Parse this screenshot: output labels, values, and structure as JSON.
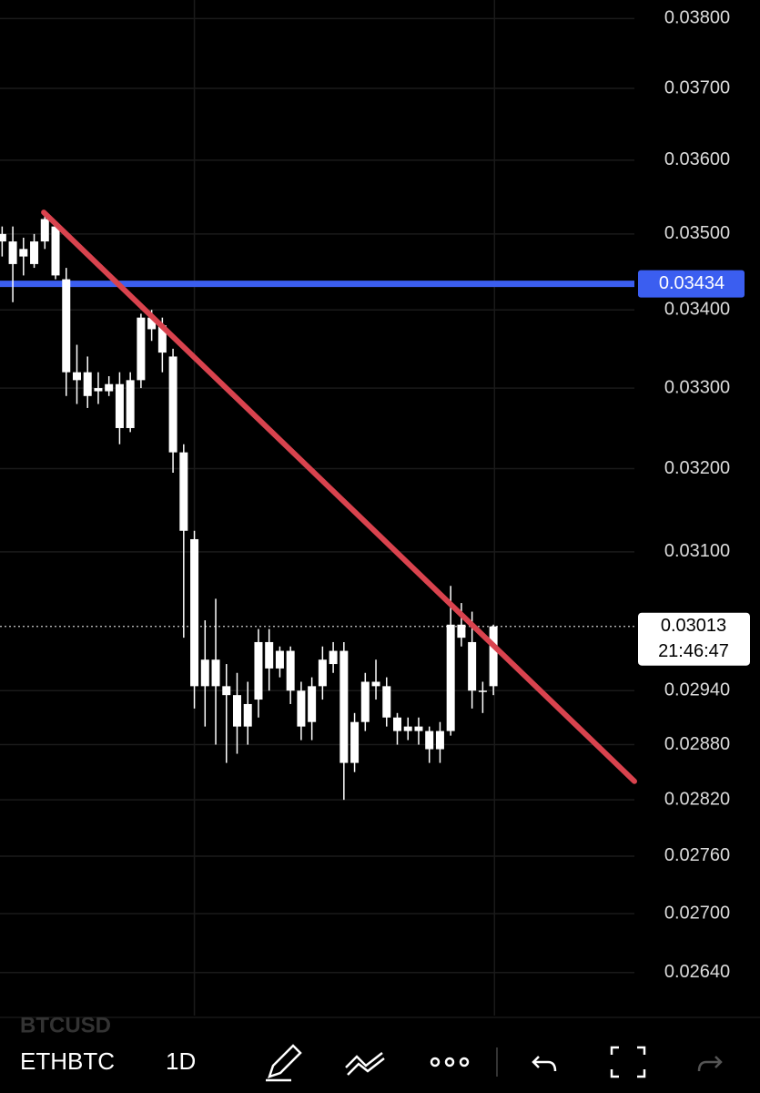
{
  "chart_data": {
    "type": "candlestick",
    "log_scale": true,
    "grid": true,
    "up_color": "#ffffff",
    "trend_color": "#d9434e",
    "hline_color": "#3b5ef0",
    "open": [
      0.0349,
      0.0346,
      0.0347,
      0.0346,
      0.0349,
      0.0351,
      0.0344,
      0.0332,
      0.0332,
      0.033,
      0.03296,
      0.03305,
      0.0325,
      0.0331,
      0.0339,
      0.0338,
      0.0334,
      0.0322,
      0.03115,
      0.02945,
      0.02975,
      0.02945,
      0.02935,
      0.029,
      0.0293,
      0.02995,
      0.02965,
      0.02985,
      0.0294,
      0.02905,
      0.02945,
      0.0297,
      0.02985,
      0.0286,
      0.02905,
      0.0295,
      0.02945,
      0.0291,
      0.02895,
      0.029,
      0.02895,
      0.02875,
      0.02895,
      0.03015,
      0.02995,
      0.0294,
      0.02945
    ],
    "high": [
      0.0351,
      0.0351,
      0.03495,
      0.035,
      0.0353,
      0.03515,
      0.03455,
      0.03355,
      0.0334,
      0.0332,
      0.03315,
      0.0332,
      0.0332,
      0.03395,
      0.034,
      0.0339,
      0.0335,
      0.0323,
      0.03125,
      0.0302,
      0.03045,
      0.0297,
      0.0296,
      0.0295,
      0.0301,
      0.0301,
      0.0299,
      0.0299,
      0.0295,
      0.02955,
      0.0299,
      0.02995,
      0.02995,
      0.02915,
      0.0296,
      0.02975,
      0.02955,
      0.02915,
      0.0291,
      0.0291,
      0.029,
      0.02905,
      0.0306,
      0.0304,
      0.0303,
      0.0295,
      0.03015
    ],
    "low": [
      0.0347,
      0.0341,
      0.03445,
      0.03455,
      0.0348,
      0.0344,
      0.0329,
      0.0328,
      0.03275,
      0.0328,
      0.0329,
      0.0323,
      0.03245,
      0.033,
      0.0336,
      0.0332,
      0.03195,
      0.03,
      0.0292,
      0.029,
      0.0288,
      0.0286,
      0.0287,
      0.0288,
      0.0291,
      0.0294,
      0.02955,
      0.02925,
      0.02885,
      0.02885,
      0.0293,
      0.0296,
      0.0282,
      0.0285,
      0.02895,
      0.0293,
      0.029,
      0.0288,
      0.02885,
      0.0288,
      0.0286,
      0.0286,
      0.0289,
      0.0299,
      0.0292,
      0.02915,
      0.02935
    ],
    "close": [
      0.035,
      0.0349,
      0.0348,
      0.0349,
      0.0352,
      0.03445,
      0.0332,
      0.0331,
      0.0329,
      0.03296,
      0.03305,
      0.0325,
      0.0331,
      0.0339,
      0.03375,
      0.03345,
      0.0322,
      0.03125,
      0.02945,
      0.02975,
      0.02945,
      0.02935,
      0.029,
      0.02925,
      0.02995,
      0.02965,
      0.02985,
      0.0294,
      0.029,
      0.02945,
      0.02975,
      0.02985,
      0.0286,
      0.02905,
      0.0295,
      0.02945,
      0.0291,
      0.02895,
      0.029,
      0.02895,
      0.02875,
      0.02895,
      0.03015,
      0.03,
      0.0294,
      0.0294,
      0.03013
    ],
    "xlim": [
      -0.2,
      59.2
    ],
    "ylim": [
      0.02597,
      0.03827
    ],
    "yticks": [
      {
        "value": 0.038,
        "label": "0.03800"
      },
      {
        "value": 0.037,
        "label": "0.03700"
      },
      {
        "value": 0.036,
        "label": "0.03600"
      },
      {
        "value": 0.035,
        "label": "0.03500"
      },
      {
        "value": 0.034,
        "label": "0.03400"
      },
      {
        "value": 0.033,
        "label": "0.03300"
      },
      {
        "value": 0.032,
        "label": "0.03200"
      },
      {
        "value": 0.031,
        "label": "0.03100"
      },
      {
        "value": 0.0294,
        "label": "0.02940"
      },
      {
        "value": 0.0288,
        "label": "0.02880"
      },
      {
        "value": 0.0282,
        "label": "0.02820"
      },
      {
        "value": 0.0276,
        "label": "0.02760"
      },
      {
        "value": 0.027,
        "label": "0.02700"
      },
      {
        "value": 0.0264,
        "label": "0.02640"
      }
    ],
    "xgrid": [
      18,
      46.1
    ],
    "horizontal_line": 0.03434,
    "trend_line": {
      "x": [
        3.9,
        59.2
      ],
      "values": [
        0.03529,
        0.0284
      ]
    },
    "last_price": 0.03013,
    "countdown": "21:46:47"
  },
  "toolbar": {
    "symbol": "ETHBTC",
    "interval": "1D",
    "overlay_symbol": "BTCUSD"
  }
}
